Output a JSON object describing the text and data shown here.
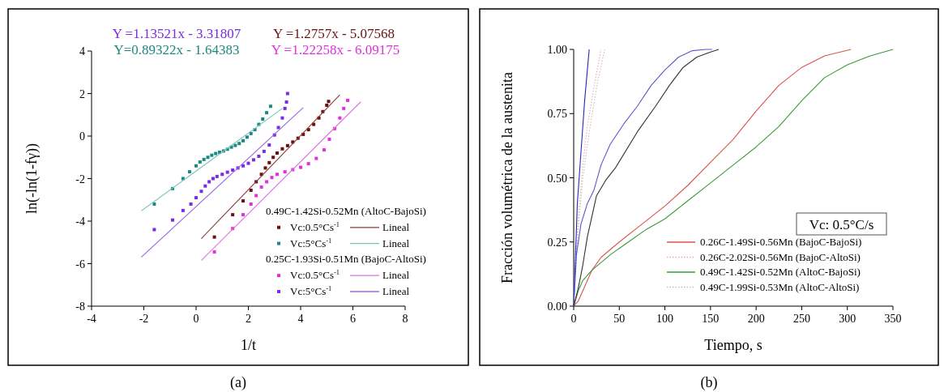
{
  "chart_data": [
    {
      "type": "scatter",
      "xlabel": "1/t",
      "ylabel": "ln(-ln(1-fγ))",
      "xlim": [
        -4,
        8
      ],
      "ylim": [
        -8,
        4
      ],
      "xticks": [
        -4,
        -2,
        0,
        2,
        4,
        6,
        8
      ],
      "yticks": [
        -8,
        -6,
        -4,
        -2,
        0,
        2,
        4
      ],
      "grid": false,
      "legend": "bottom right",
      "annotations": [
        "Y =1.13521x - 3.31807",
        "Y =1.2757x - 5.07568",
        "Y=0.89322x - 1.64383",
        "Y =1.22258x - 6.09175",
        "0.49C-1.42Si-0.52Mn (AltoC-BajoSi)",
        "0.25C-1.93Si-0.51Mn (BajoC-AltoSi)",
        "(a)"
      ],
      "series": [
        {
          "name": "Vc:0.5°Cs$^{-1}$",
          "marker": "square",
          "color": "#6b1010",
          "x": [
            0.7,
            1.4,
            1.8,
            2.1,
            2.3,
            2.5,
            2.65,
            2.8,
            2.95,
            3.1,
            3.3,
            3.5,
            3.7,
            3.9,
            4.1,
            4.3,
            4.5,
            4.7,
            4.85,
            5.0,
            5.07
          ],
          "values": [
            -4.75,
            -3.7,
            -3.05,
            -2.55,
            -2.15,
            -1.8,
            -1.5,
            -1.25,
            -1.0,
            -0.8,
            -0.6,
            -0.45,
            -0.28,
            -0.1,
            0.08,
            0.3,
            0.55,
            0.85,
            1.15,
            1.45,
            1.63
          ]
        },
        {
          "name": "Lineal",
          "type": "line",
          "color": "#8b3a3a",
          "x": [
            0.2,
            5.5
          ],
          "values": [
            -4.82,
            1.94
          ]
        },
        {
          "name": "Vc:5°Cs$^{-1}$",
          "marker": "square",
          "color": "#1a8a80",
          "x": [
            -1.6,
            -0.9,
            -0.5,
            -0.25,
            0,
            0.15,
            0.3,
            0.45,
            0.6,
            0.75,
            0.9,
            1.05,
            1.2,
            1.35,
            1.5,
            1.65,
            1.8,
            1.95,
            2.1,
            2.25,
            2.4,
            2.55,
            2.7,
            2.85
          ],
          "values": [
            -3.2,
            -2.47,
            -2.0,
            -1.68,
            -1.4,
            -1.22,
            -1.1,
            -1.0,
            -0.9,
            -0.82,
            -0.76,
            -0.7,
            -0.62,
            -0.52,
            -0.44,
            -0.35,
            -0.22,
            -0.05,
            0.12,
            0.3,
            0.55,
            0.8,
            1.1,
            1.4
          ]
        },
        {
          "name": "Lineal",
          "type": "line",
          "color": "#7cc4bc",
          "x": [
            -2.1,
            3.3
          ],
          "values": [
            -3.52,
            1.3
          ]
        },
        {
          "name": "Vc:0.5°Cs$^{-1}$",
          "marker": "square",
          "color": "#e030e0",
          "x": [
            0.7,
            1.4,
            1.8,
            2.1,
            2.3,
            2.5,
            2.7,
            2.9,
            3.1,
            3.4,
            3.7,
            4.0,
            4.3,
            4.6,
            4.9,
            5.1,
            5.3,
            5.5,
            5.65,
            5.8
          ],
          "values": [
            -5.45,
            -4.35,
            -3.7,
            -3.2,
            -2.8,
            -2.4,
            -2.15,
            -1.95,
            -1.8,
            -1.68,
            -1.58,
            -1.47,
            -1.3,
            -1.05,
            -0.65,
            -0.15,
            0.35,
            0.85,
            1.3,
            1.68
          ]
        },
        {
          "name": "Lineal",
          "type": "line",
          "color": "#e070e0",
          "x": [
            0.2,
            6.3
          ],
          "values": [
            -5.85,
            1.61
          ]
        },
        {
          "name": "Vc:5°Cs$^{-1}$",
          "marker": "square",
          "color": "#7b2be0",
          "x": [
            -1.6,
            -0.9,
            -0.5,
            -0.2,
            0,
            0.2,
            0.35,
            0.5,
            0.65,
            0.8,
            1.0,
            1.2,
            1.4,
            1.6,
            1.8,
            2.0,
            2.2,
            2.4,
            2.6,
            2.8,
            3.0,
            3.15,
            3.3,
            3.4,
            3.46,
            3.5
          ],
          "values": [
            -4.4,
            -3.95,
            -3.5,
            -3.2,
            -2.9,
            -2.6,
            -2.35,
            -2.15,
            -2.0,
            -1.9,
            -1.8,
            -1.7,
            -1.6,
            -1.5,
            -1.4,
            -1.28,
            -1.12,
            -0.95,
            -0.72,
            -0.42,
            0.05,
            0.4,
            0.85,
            1.3,
            1.6,
            2.0
          ]
        },
        {
          "name": "Lineal",
          "type": "line",
          "color": "#9a66e0",
          "x": [
            -2.1,
            4.1
          ],
          "values": [
            -5.7,
            1.34
          ]
        }
      ]
    },
    {
      "type": "line",
      "xlabel": "Tiempo, s",
      "ylabel": "Fracción volumétrica de la austenita",
      "xlim": [
        0,
        350
      ],
      "ylim": [
        0,
        1
      ],
      "xticks": [
        0,
        50,
        100,
        150,
        200,
        250,
        300,
        350
      ],
      "yticks": [
        {
          "value": 0,
          "label": "0.00"
        },
        {
          "value": 0.25,
          "label": "0.25"
        },
        {
          "value": 0.5,
          "label": "0.50"
        },
        {
          "value": 0.75,
          "label": "0.75"
        },
        {
          "value": 1,
          "label": "1.00"
        }
      ],
      "grid": false,
      "legend": "bottom right",
      "legend_title": "Vc: 0.5°C/s",
      "annotations": [
        "(b)"
      ],
      "series": [
        {
          "name": "0.26C-1.49Si-0.56Mn (BajoC-BajoSi)",
          "color": "#d9534f",
          "x": [
            0,
            5,
            10,
            20,
            30,
            50,
            75,
            100,
            125,
            150,
            175,
            200,
            225,
            250,
            275,
            304
          ],
          "values": [
            0,
            0.02,
            0.06,
            0.14,
            0.19,
            0.25,
            0.32,
            0.39,
            0.47,
            0.56,
            0.65,
            0.76,
            0.86,
            0.93,
            0.975,
            1.0
          ]
        },
        {
          "name": "0.26C-2.02Si-0.56Mn (BajoC-AltoSi)",
          "color": "#f0a8a8",
          "line_style": "dotted",
          "x": [
            0,
            5,
            10,
            15,
            22,
            30
          ],
          "values": [
            0,
            0.35,
            0.55,
            0.7,
            0.85,
            1.0
          ]
        },
        {
          "name": "0.49C-1.42Si-0.52Mn (AltoC-BajoSi)",
          "color": "#3a9a3a",
          "x": [
            0,
            5,
            10,
            20,
            40,
            60,
            80,
            100,
            125,
            150,
            175,
            200,
            225,
            250,
            275,
            300,
            325,
            350
          ],
          "values": [
            0,
            0.06,
            0.1,
            0.14,
            0.2,
            0.25,
            0.3,
            0.34,
            0.41,
            0.48,
            0.55,
            0.62,
            0.7,
            0.8,
            0.89,
            0.94,
            0.975,
            1.0
          ]
        },
        {
          "name": "0.49C-1.99Si-0.53Mn (AltoC-AltoSi)",
          "color": "#c0c0c0",
          "line_style": "dotted",
          "x": [
            0,
            5,
            10,
            18,
            26,
            34
          ],
          "values": [
            0,
            0.3,
            0.5,
            0.7,
            0.87,
            1.0
          ]
        },
        {
          "color": "#2828c0",
          "x": [
            0,
            2,
            4,
            8,
            12,
            17
          ],
          "values": [
            0,
            0.2,
            0.4,
            0.6,
            0.8,
            1.0
          ]
        },
        {
          "color": "#5a5ac8",
          "x": [
            0,
            3,
            8,
            15,
            22,
            30,
            40,
            55,
            70,
            85,
            100,
            115,
            130,
            145,
            152
          ],
          "values": [
            0,
            0.2,
            0.32,
            0.4,
            0.45,
            0.55,
            0.63,
            0.71,
            0.78,
            0.86,
            0.92,
            0.97,
            0.995,
            1.0,
            1.0
          ]
        },
        {
          "color": "#333333",
          "x": [
            0,
            5,
            10,
            15,
            20,
            25,
            35,
            46,
            70,
            90,
            105,
            120,
            135,
            150,
            159
          ],
          "values": [
            0,
            0.07,
            0.16,
            0.27,
            0.35,
            0.43,
            0.49,
            0.54,
            0.68,
            0.78,
            0.86,
            0.93,
            0.97,
            0.99,
            1.0
          ]
        }
      ]
    }
  ]
}
